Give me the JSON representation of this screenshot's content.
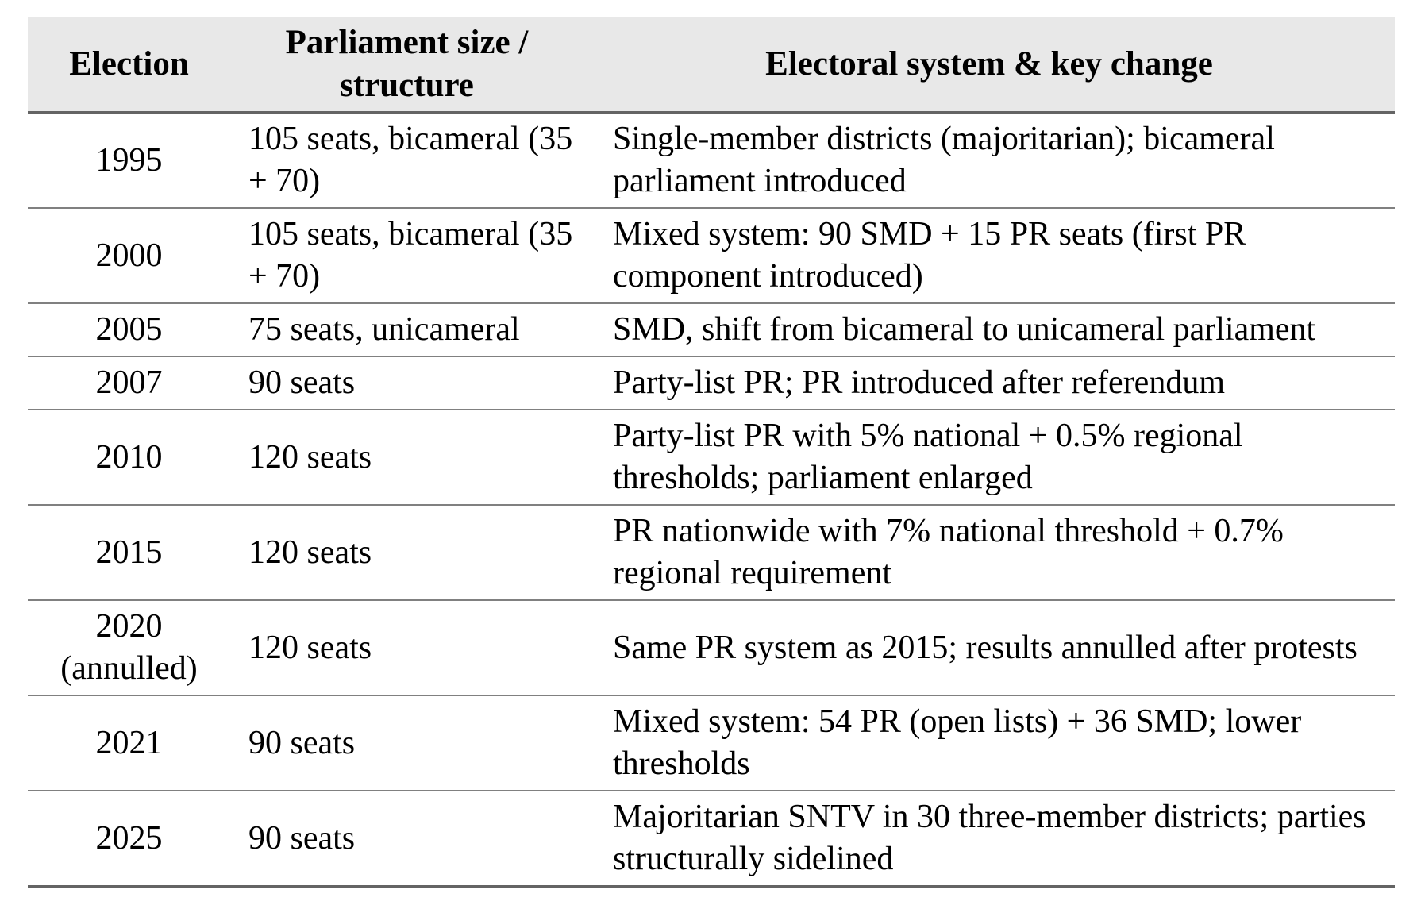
{
  "table": {
    "columns": [
      {
        "label": "Election"
      },
      {
        "label": "Parliament size / structure"
      },
      {
        "label": "Electoral system & key change"
      }
    ],
    "rows": [
      {
        "election": "1995",
        "size": "105 seats, bicameral (35 + 70)",
        "system": "Single-member districts (majoritarian); bicameral parliament introduced"
      },
      {
        "election": "2000",
        "size": "105 seats, bicameral (35 + 70)",
        "system": "Mixed system: 90 SMD + 15 PR seats (first PR component introduced)"
      },
      {
        "election": "2005",
        "size": "75 seats, unicameral",
        "system": "SMD, shift from bicameral to unicameral parliament"
      },
      {
        "election": "2007",
        "size": "90 seats",
        "system": "Party-list PR; PR introduced after referendum"
      },
      {
        "election": "2010",
        "size": "120 seats",
        "system": "Party-list PR with 5% national + 0.5% regional thresholds; parliament enlarged"
      },
      {
        "election": "2015",
        "size": "120 seats",
        "system": "PR nationwide with 7% national threshold + 0.7% regional requirement"
      },
      {
        "election": "2020 (annulled)",
        "size": "120 seats",
        "system": "Same PR system as 2015; results annulled after protests"
      },
      {
        "election": "2021",
        "size": "90 seats",
        "system": "Mixed system: 54 PR (open lists) + 36 SMD; lower thresholds"
      },
      {
        "election": "2025",
        "size": "90 seats",
        "system": "Majoritarian SNTV in 30 three-member districts; parties structurally sidelined"
      }
    ]
  },
  "colors": {
    "header_background": "#e8e8e8",
    "row_divider": "#808080",
    "strong_border": "#646464",
    "text": "#000000",
    "page_background": "#ffffff"
  }
}
